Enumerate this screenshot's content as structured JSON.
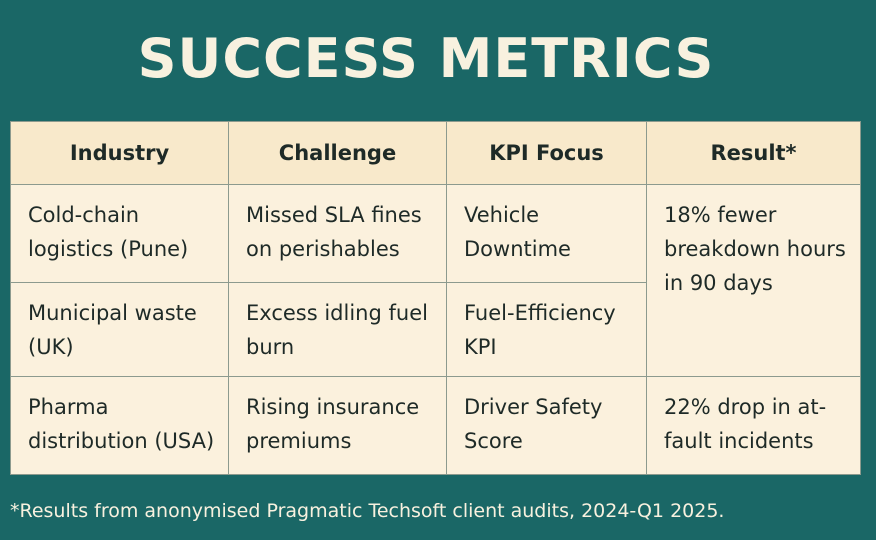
{
  "title": "SUCCESS METRICS",
  "table": {
    "headers": [
      "Industry",
      "Challenge",
      "KPI Focus",
      "Result*"
    ],
    "rows": [
      {
        "industry": "Cold-chain logistics (Pune)",
        "challenge": "Missed SLA fines on perishables",
        "kpi": "Vehicle Downtime",
        "result": "18% fewer breakdown hours in 90 days"
      },
      {
        "industry": "Municipal waste (UK)",
        "challenge": "Excess idling fuel burn",
        "kpi": "Fuel-Efficiency KPI"
      },
      {
        "industry": "Pharma distribution (USA)",
        "challenge": "Rising insurance premiums",
        "kpi": "Driver Safety Score",
        "result": "22% drop in at-fault incidents"
      }
    ]
  },
  "footnote": "*Results from anonymised Pragmatic Techsoft client audits, 2024-Q1 2025."
}
